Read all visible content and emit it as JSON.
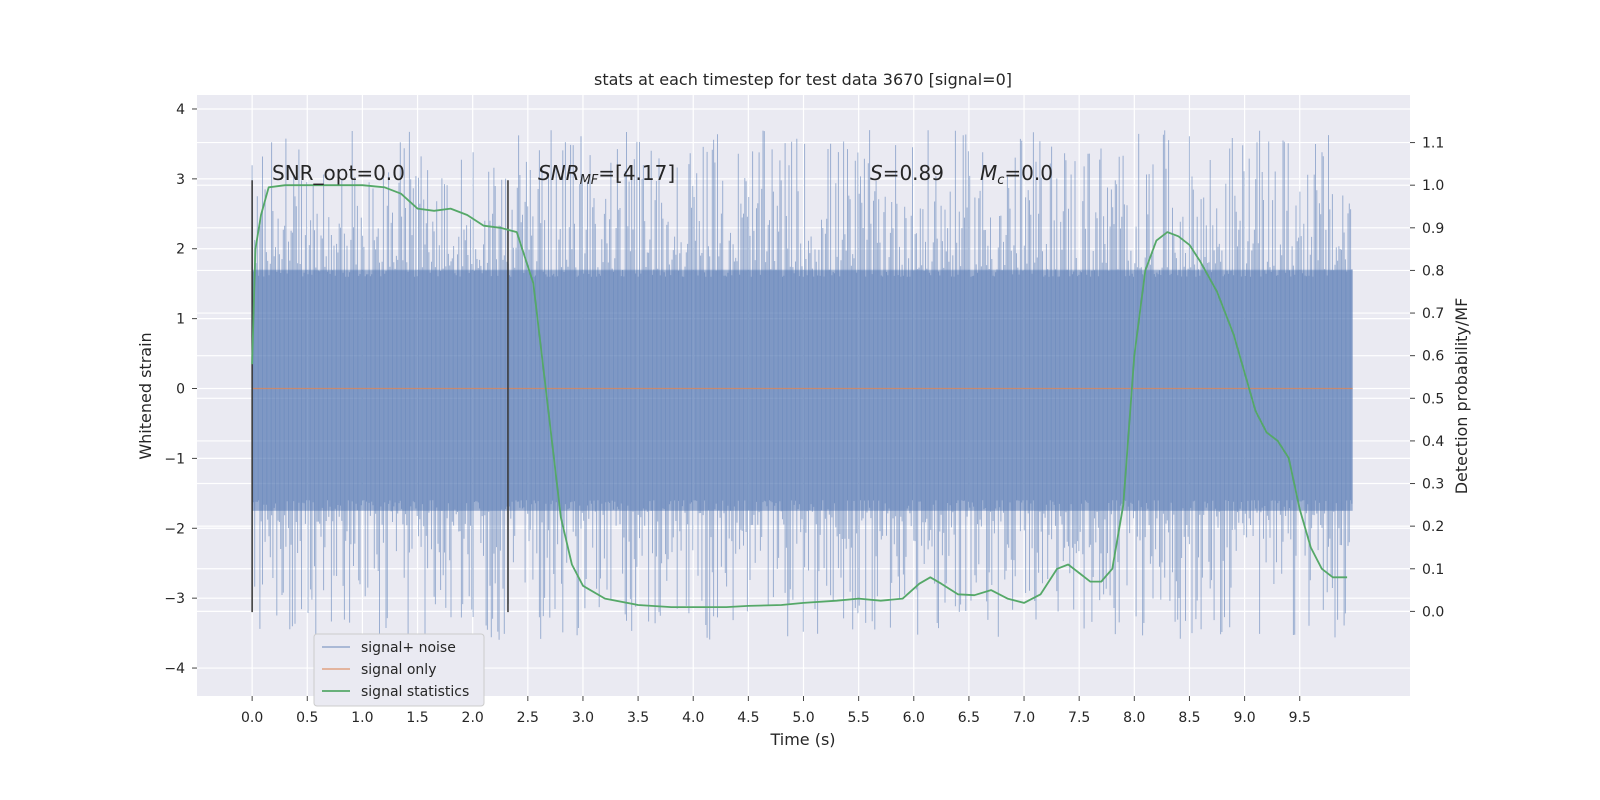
{
  "chart_data": {
    "type": "line",
    "title": "stats at each timestep for test data 3670 [signal=0]",
    "xlabel": "Time (s)",
    "ylabel_left": "Whitened strain",
    "ylabel_right": "Detection probability/MF",
    "xlim": [
      -0.5,
      10.5
    ],
    "ylim_left": [
      -4.4,
      4.2
    ],
    "ylim_right": [
      -0.1985,
      1.2116
    ],
    "xticks": [
      "0.0",
      "0.5",
      "1.0",
      "1.5",
      "2.0",
      "2.5",
      "3.0",
      "3.5",
      "4.0",
      "4.5",
      "5.0",
      "5.5",
      "6.0",
      "6.5",
      "7.0",
      "7.5",
      "8.0",
      "8.5",
      "9.0",
      "9.5"
    ],
    "yticks_left": [
      "4",
      "3",
      "2",
      "1",
      "0",
      "−1",
      "−2",
      "−3",
      "−4"
    ],
    "yticks_right": [
      "1.1",
      "1.0",
      "0.9",
      "0.8",
      "0.7",
      "0.6",
      "0.5",
      "0.4",
      "0.3",
      "0.2",
      "0.1",
      "0.0"
    ],
    "grid": true,
    "legend_position": "lower-left",
    "annotations": {
      "snr_opt": "SNR_opt=0.0",
      "snr_mf_prefix": "SNR",
      "snr_mf_sub": "MF",
      "snr_mf_value": "=[4.17]",
      "s_prefix": "S",
      "s_value": "=0.89",
      "mc_prefix": "M",
      "mc_sub": "c",
      "mc_value": "=0.0"
    },
    "vertical_markers": [
      0.0,
      2.32
    ],
    "series": [
      {
        "name": "signal+ noise",
        "axis": "left",
        "color": "#4c72b0",
        "description_level": "noise band roughly ±1.7 with spikes up to about ±3.8",
        "x_range": [
          0.0,
          9.98
        ]
      },
      {
        "name": "signal only",
        "axis": "left",
        "color": "#dd8452",
        "x": [
          0.0,
          9.98
        ],
        "y": [
          0.0,
          0.0
        ]
      },
      {
        "name": "signal statistics",
        "axis": "right",
        "color": "#55a868",
        "x": [
          0.0,
          0.03,
          0.08,
          0.15,
          0.3,
          0.5,
          0.8,
          1.0,
          1.2,
          1.35,
          1.5,
          1.65,
          1.8,
          1.95,
          2.1,
          2.25,
          2.4,
          2.55,
          2.65,
          2.75,
          2.8,
          2.9,
          3.0,
          3.2,
          3.5,
          3.8,
          4.0,
          4.3,
          4.5,
          4.8,
          5.0,
          5.3,
          5.5,
          5.7,
          5.9,
          6.05,
          6.15,
          6.25,
          6.4,
          6.55,
          6.7,
          6.85,
          7.0,
          7.15,
          7.3,
          7.4,
          7.5,
          7.6,
          7.7,
          7.8,
          7.9,
          8.0,
          8.1,
          8.2,
          8.3,
          8.4,
          8.5,
          8.6,
          8.75,
          8.9,
          9.0,
          9.1,
          9.2,
          9.3,
          9.4,
          9.5,
          9.6,
          9.7,
          9.8,
          9.9,
          9.93
        ],
        "y": [
          0.58,
          0.85,
          0.93,
          0.995,
          1.0,
          1.0,
          1.0,
          1.0,
          0.995,
          0.98,
          0.945,
          0.94,
          0.945,
          0.93,
          0.905,
          0.9,
          0.89,
          0.77,
          0.55,
          0.33,
          0.22,
          0.11,
          0.06,
          0.03,
          0.015,
          0.01,
          0.01,
          0.01,
          0.013,
          0.015,
          0.02,
          0.025,
          0.03,
          0.025,
          0.03,
          0.065,
          0.08,
          0.065,
          0.04,
          0.038,
          0.05,
          0.03,
          0.02,
          0.04,
          0.1,
          0.11,
          0.09,
          0.07,
          0.07,
          0.1,
          0.25,
          0.6,
          0.8,
          0.87,
          0.89,
          0.88,
          0.86,
          0.82,
          0.75,
          0.65,
          0.56,
          0.47,
          0.42,
          0.4,
          0.36,
          0.24,
          0.15,
          0.1,
          0.08,
          0.08,
          0.08
        ]
      }
    ]
  }
}
